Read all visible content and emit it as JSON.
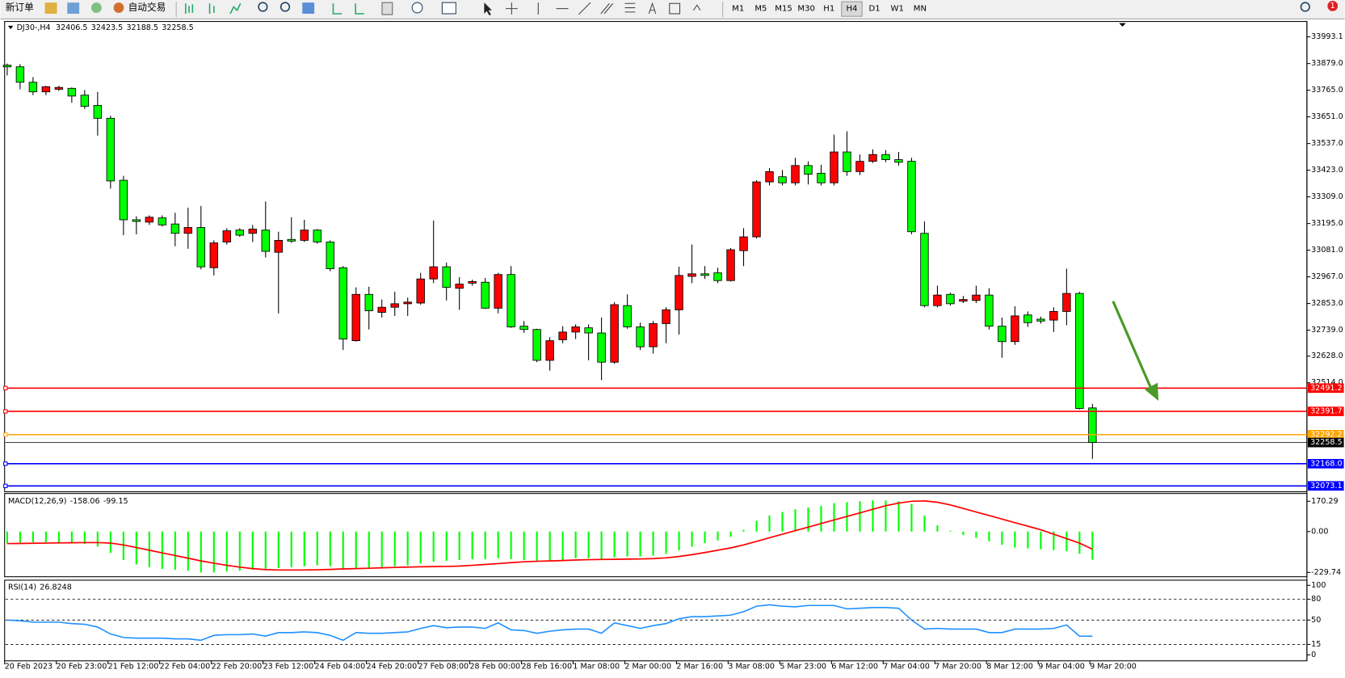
{
  "toolbar": {
    "order_button": "新订单",
    "autotrade": "自动交易",
    "timeframes": [
      "M1",
      "M5",
      "M15",
      "M30",
      "H1",
      "H4",
      "D1",
      "W1",
      "MN"
    ],
    "active_timeframe": 5,
    "notifications": "1"
  },
  "chart_data": [
    {
      "type": "candlestick",
      "title": "DJ30-,H4",
      "up_color": "#ff0000",
      "down_color": "#00ff00",
      "ylim": [
        32048,
        34059
      ],
      "yticks": [
        33993.1,
        {
          "value": 33879,
          "label": "33879.0"
        },
        {
          "value": 33765,
          "label": "33765.0"
        },
        {
          "value": 33651,
          "label": "33651.0"
        },
        {
          "value": 33537,
          "label": "33537.0"
        },
        {
          "value": 33423,
          "label": "33423.0"
        },
        {
          "value": 33309,
          "label": "33309.0"
        },
        {
          "value": 33195,
          "label": "33195.0"
        },
        {
          "value": 33081,
          "label": "33081.0"
        },
        {
          "value": 32967,
          "label": "32967.0"
        },
        {
          "value": 32853,
          "label": "32853.0"
        },
        {
          "value": 32739,
          "label": "32739.0"
        },
        {
          "value": 32628,
          "label": "32628.0"
        },
        {
          "value": 32514,
          "label": "32514.0"
        }
      ],
      "levels": [
        {
          "value": 32491.2,
          "color": "#ff0000"
        },
        {
          "value": 32391.7,
          "color": "#ff0000"
        },
        {
          "value": 32292.2,
          "color": "#ffa500"
        },
        {
          "value": 32168,
          "label": "32168.0",
          "color": "#0000ff"
        },
        {
          "value": 32073.1,
          "color": "#0000ff"
        }
      ],
      "bid_color": "#000000",
      "categories": [
        "20 Feb 2023",
        null,
        null,
        null,
        "20 Feb 23:00",
        null,
        null,
        null,
        "21 Feb 12:00",
        null,
        null,
        null,
        "22 Feb 04:00",
        null,
        null,
        null,
        "22 Feb 20:00",
        null,
        null,
        null,
        "23 Feb 12:00",
        null,
        null,
        null,
        "24 Feb 04:00",
        null,
        null,
        null,
        "24 Feb 20:00",
        null,
        null,
        null,
        "27 Feb 08:00",
        null,
        null,
        null,
        "28 Feb 00:00",
        null,
        null,
        null,
        "28 Feb 16:00",
        null,
        null,
        null,
        "1 Mar 08:00",
        null,
        null,
        null,
        "2 Mar 00:00",
        null,
        null,
        null,
        "2 Mar 16:00",
        null,
        null,
        null,
        "3 Mar 08:00",
        null,
        null,
        null,
        "5 Mar 23:00",
        null,
        null,
        null,
        "6 Mar 12:00",
        null,
        null,
        null,
        "7 Mar 04:00",
        null,
        null,
        null,
        "7 Mar 20:00",
        null,
        null,
        null,
        "8 Mar 12:00",
        null,
        null,
        null,
        "9 Mar 04:00",
        null,
        null,
        null,
        "9 Mar 20:00"
      ],
      "candles": [
        [
          33872,
          33879,
          33828,
          33865
        ],
        [
          33865,
          33876,
          33769,
          33799
        ],
        [
          33799,
          33821,
          33744,
          33758
        ],
        [
          33758,
          33784,
          33744,
          33780
        ],
        [
          33769,
          33784,
          33762,
          33777
        ],
        [
          33773,
          33777,
          33711,
          33740
        ],
        [
          33744,
          33766,
          33685,
          33696
        ],
        [
          33700,
          33758,
          33571,
          33645
        ],
        [
          33645,
          33656,
          33344,
          33377
        ],
        [
          33380,
          33399,
          33145,
          33211
        ],
        [
          33211,
          33226,
          33149,
          33204
        ],
        [
          33201,
          33230,
          33189,
          33222
        ],
        [
          33219,
          33230,
          33182,
          33189
        ],
        [
          33193,
          33241,
          33098,
          33153
        ],
        [
          33153,
          33263,
          33087,
          33178
        ],
        [
          33178,
          33270,
          32999,
          33010
        ],
        [
          33006,
          33123,
          32973,
          33112
        ],
        [
          33116,
          33175,
          33105,
          33164
        ],
        [
          33167,
          33175,
          33138,
          33145
        ],
        [
          33153,
          33189,
          33116,
          33171
        ],
        [
          33167,
          33289,
          33050,
          33076
        ],
        [
          33072,
          33160,
          32811,
          33123
        ],
        [
          33127,
          33222,
          33112,
          33120
        ],
        [
          33123,
          33211,
          33116,
          33167
        ],
        [
          33167,
          33171,
          33109,
          33116
        ],
        [
          33116,
          33123,
          32991,
          33002
        ],
        [
          33006,
          33013,
          32654,
          32701
        ],
        [
          32694,
          32922,
          32690,
          32892
        ],
        [
          32892,
          32925,
          32742,
          32822
        ],
        [
          32815,
          32870,
          32793,
          32837
        ],
        [
          32837,
          32903,
          32800,
          32852
        ],
        [
          32852,
          32878,
          32800,
          32859
        ],
        [
          32855,
          32984,
          32848,
          32958
        ],
        [
          32958,
          33208,
          32940,
          33010
        ],
        [
          33010,
          33028,
          32866,
          32922
        ],
        [
          32918,
          32966,
          32826,
          32936
        ],
        [
          32940,
          32955,
          32929,
          32947
        ],
        [
          32944,
          32962,
          32830,
          32833
        ],
        [
          32833,
          32984,
          32811,
          32977
        ],
        [
          32977,
          33013,
          32749,
          32753
        ],
        [
          32756,
          32778,
          32727,
          32742
        ],
        [
          32742,
          32745,
          32602,
          32610
        ],
        [
          32610,
          32709,
          32566,
          32694
        ],
        [
          32698,
          32756,
          32683,
          32731
        ],
        [
          32731,
          32764,
          32701,
          32753
        ],
        [
          32749,
          32764,
          32610,
          32727
        ],
        [
          32727,
          32793,
          32525,
          32602
        ],
        [
          32602,
          32859,
          32595,
          32848
        ],
        [
          32844,
          32892,
          32745,
          32753
        ],
        [
          32753,
          32771,
          32654,
          32668
        ],
        [
          32668,
          32778,
          32639,
          32767
        ],
        [
          32767,
          32837,
          32683,
          32826
        ],
        [
          32826,
          33010,
          32720,
          32973
        ],
        [
          32969,
          33105,
          32940,
          32980
        ],
        [
          32980,
          33013,
          32958,
          32973
        ],
        [
          32984,
          33006,
          32940,
          32951
        ],
        [
          32951,
          33090,
          32947,
          33083
        ],
        [
          33079,
          33175,
          33013,
          33138
        ],
        [
          33138,
          33380,
          33131,
          33373
        ],
        [
          33373,
          33432,
          33358,
          33417
        ],
        [
          33395,
          33424,
          33358,
          33369
        ],
        [
          33369,
          33476,
          33358,
          33443
        ],
        [
          33443,
          33461,
          33362,
          33406
        ],
        [
          33410,
          33446,
          33358,
          33369
        ],
        [
          33369,
          33575,
          33358,
          33501
        ],
        [
          33501,
          33589,
          33399,
          33417
        ],
        [
          33417,
          33490,
          33402,
          33461
        ],
        [
          33461,
          33512,
          33454,
          33490
        ],
        [
          33490,
          33509,
          33457,
          33468
        ],
        [
          33468,
          33501,
          33443,
          33457
        ],
        [
          33461,
          33476,
          33149,
          33160
        ],
        [
          33153,
          33204,
          32837,
          32844
        ],
        [
          32844,
          32929,
          32837,
          32889
        ],
        [
          32892,
          32900,
          32844,
          32852
        ],
        [
          32863,
          32885,
          32855,
          32870
        ],
        [
          32866,
          32929,
          32855,
          32889
        ],
        [
          32889,
          32918,
          32742,
          32756
        ],
        [
          32756,
          32793,
          32621,
          32690
        ],
        [
          32690,
          32841,
          32676,
          32800
        ],
        [
          32804,
          32819,
          32753,
          32771
        ],
        [
          32786,
          32797,
          32767,
          32778
        ],
        [
          32782,
          32837,
          32731,
          32819
        ],
        [
          32819,
          33002,
          32760,
          32896
        ],
        [
          32896,
          32903,
          32400,
          32404
        ],
        [
          32406.5,
          32423.5,
          32188.5,
          32258.5
        ]
      ]
    },
    {
      "type": "macd",
      "title": "MACD(12,26,9)",
      "ylim": [
        -254,
        214
      ],
      "yticks": [
        170.29,
        {
          "value": 0,
          "label": "0.00"
        },
        -229.74
      ],
      "bars": {
        "color": "#00ff00",
        "values": [
          -65,
          -62,
          -60,
          -60,
          -62,
          -65,
          -70,
          -85,
          -120,
          -160,
          -185,
          -200,
          -210,
          -215,
          -220,
          -230,
          -230,
          -225,
          -220,
          -215,
          -210,
          -205,
          -200,
          -195,
          -190,
          -195,
          -215,
          -210,
          -205,
          -200,
          -195,
          -190,
          -180,
          -170,
          -165,
          -160,
          -155,
          -155,
          -150,
          -155,
          -160,
          -170,
          -165,
          -160,
          -150,
          -150,
          -160,
          -145,
          -140,
          -140,
          -135,
          -125,
          -105,
          -85,
          -65,
          -50,
          -30,
          10,
          60,
          90,
          110,
          125,
          135,
          145,
          160,
          165,
          170,
          175,
          175,
          170,
          155,
          90,
          35,
          5,
          -20,
          -35,
          -55,
          -75,
          -90,
          -95,
          -100,
          -105,
          -110,
          -125,
          -158.06
        ]
      },
      "line": {
        "color": "#ff0000",
        "values": [
          -68,
          -67,
          -66,
          -65,
          -64,
          -63,
          -62,
          -62,
          -65,
          -75,
          -90,
          -105,
          -120,
          -135,
          -150,
          -165,
          -178,
          -190,
          -200,
          -208,
          -214,
          -216,
          -216,
          -216,
          -215,
          -213,
          -210,
          -208,
          -206,
          -204,
          -202,
          -200,
          -198,
          -197,
          -196,
          -194,
          -190,
          -185,
          -180,
          -175,
          -170,
          -167,
          -165,
          -163,
          -160,
          -158,
          -157,
          -156,
          -155,
          -154,
          -152,
          -148,
          -140,
          -130,
          -118,
          -105,
          -92,
          -75,
          -55,
          -35,
          -15,
          5,
          25,
          45,
          65,
          85,
          105,
          125,
          145,
          160,
          170,
          172,
          165,
          150,
          130,
          110,
          90,
          70,
          50,
          30,
          10,
          -15,
          -40,
          -65,
          -99.15
        ]
      }
    },
    {
      "type": "rsi",
      "title": "RSI(14)",
      "ylim": [
        -8.6,
        107.4
      ],
      "yticks": [
        100,
        80,
        50,
        15,
        0
      ],
      "levels": [
        80,
        50,
        15
      ],
      "color": "#1e90ff",
      "values": [
        50,
        49,
        47,
        47,
        47,
        45,
        44,
        40,
        30,
        25,
        24,
        24,
        24,
        23,
        23,
        21,
        28,
        29,
        29,
        30,
        27,
        32,
        32,
        33,
        32,
        28,
        21,
        32,
        31,
        31,
        32,
        33,
        38,
        42,
        39,
        40,
        40,
        38,
        46,
        36,
        35,
        31,
        34,
        36,
        37,
        37,
        31,
        46,
        42,
        38,
        42,
        45,
        52,
        55,
        55,
        56,
        57,
        62,
        70,
        72,
        70,
        69,
        71,
        71,
        71,
        66,
        67,
        68,
        68,
        67,
        50,
        37,
        38,
        37,
        37,
        37,
        32,
        32,
        37,
        37,
        37,
        38,
        43,
        27,
        26.8248
      ]
    }
  ]
}
